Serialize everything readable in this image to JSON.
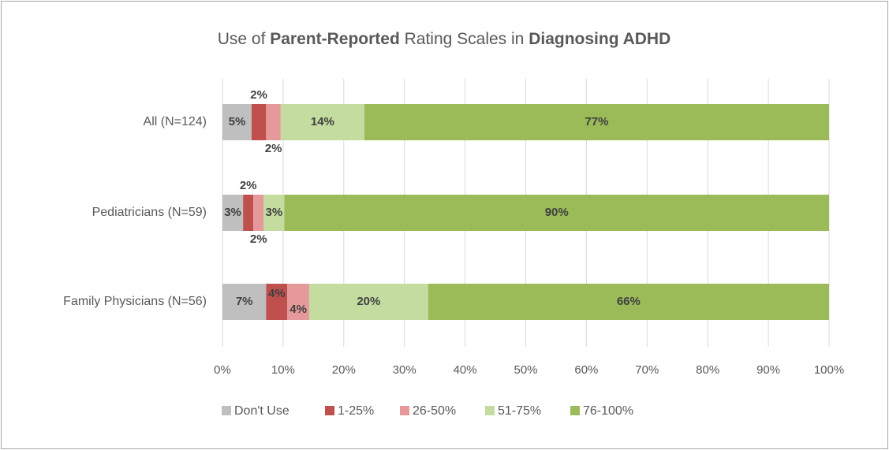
{
  "chart_data": {
    "type": "stacked_barh",
    "title": [
      "Use of ",
      "Parent-Reported",
      " Rating Scales in ",
      "Diagnosing ADHD"
    ],
    "title_bold": [
      false,
      true,
      false,
      true
    ],
    "categories": [
      "All (N=124)",
      "Pediatricians (N=59)",
      "Family Physicians (N=56)"
    ],
    "series": [
      {
        "name": "Don't Use",
        "color": "#bfbfbf",
        "values": [
          4.8,
          3.4,
          7.2
        ],
        "value_labels": [
          "5%",
          "3%",
          "7%"
        ]
      },
      {
        "name": "1-25%",
        "color": "#c0504d",
        "values": [
          2.4,
          1.7,
          3.5
        ],
        "value_labels": [
          "2%",
          "2%",
          "4%"
        ]
      },
      {
        "name": "26-50%",
        "color": "#e6999a",
        "values": [
          2.4,
          1.7,
          3.6
        ],
        "value_labels": [
          "2%",
          "2%",
          "4%"
        ]
      },
      {
        "name": "51-75%",
        "color": "#c4dc9f",
        "values": [
          13.8,
          3.4,
          19.6
        ],
        "value_labels": [
          "14%",
          "3%",
          "20%"
        ]
      },
      {
        "name": "76-100%",
        "color": "#9bbb59",
        "values": [
          76.6,
          89.8,
          66.1
        ],
        "value_labels": [
          "77%",
          "90%",
          "66%"
        ]
      }
    ],
    "xlim": [
      0,
      100
    ],
    "xticks": [
      {
        "value": 0,
        "label": "0%"
      },
      {
        "value": 10,
        "label": "10%"
      },
      {
        "value": 20,
        "label": "20%"
      },
      {
        "value": 30,
        "label": "30%"
      },
      {
        "value": 40,
        "label": "40%"
      },
      {
        "value": 50,
        "label": "50%"
      },
      {
        "value": 60,
        "label": "60%"
      },
      {
        "value": 70,
        "label": "70%"
      },
      {
        "value": 80,
        "label": "80%"
      },
      {
        "value": 90,
        "label": "90%"
      },
      {
        "value": 100,
        "label": "100%"
      }
    ],
    "grid": true,
    "legend": "bottom"
  }
}
